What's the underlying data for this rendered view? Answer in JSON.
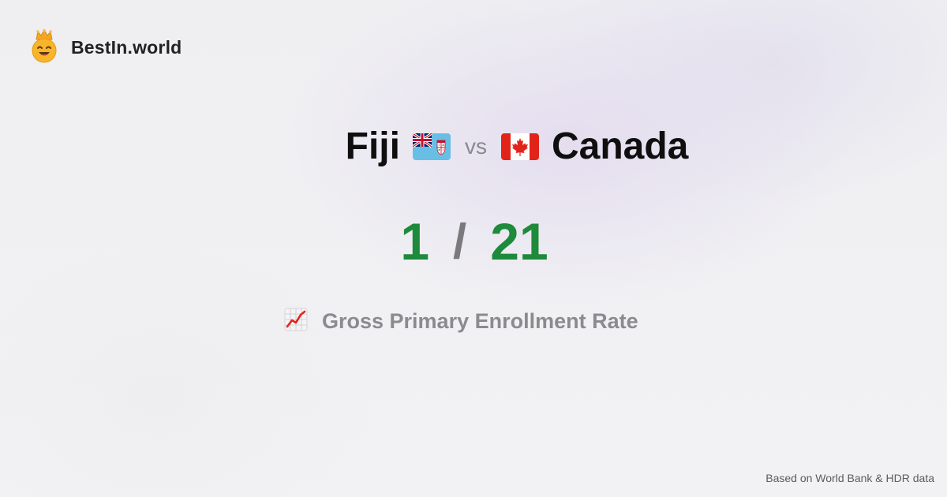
{
  "brand": {
    "name": "BestIn.world",
    "icon": "crowned-smiley-icon"
  },
  "comparison": {
    "left_country": "Fiji",
    "left_flag": "fiji-flag-icon",
    "vs": "vs",
    "right_country": "Canada",
    "right_flag": "canada-flag-icon"
  },
  "scores": {
    "left": "1",
    "separator": "/",
    "right": "21",
    "color": "#1e8a3b"
  },
  "metric": {
    "icon": "chart-increasing-icon",
    "label": "Gross Primary Enrollment Rate"
  },
  "footer": {
    "text": "Based on World Bank & HDR data"
  }
}
